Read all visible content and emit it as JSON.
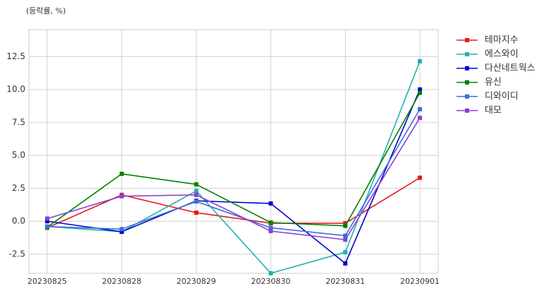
{
  "chart_data": {
    "type": "line",
    "title": "(등락률, %)",
    "categories": [
      "20230825",
      "20230828",
      "20230829",
      "20230830",
      "20230831",
      "20230901"
    ],
    "series": [
      {
        "name": "테마지수",
        "color": "#e31a1c",
        "values": [
          -0.5,
          2.0,
          0.65,
          -0.15,
          -0.15,
          3.3
        ]
      },
      {
        "name": "에스와이",
        "color": "#20b2aa",
        "values": [
          -0.4,
          -0.8,
          2.3,
          -3.95,
          -2.35,
          12.15
        ]
      },
      {
        "name": "다산네트웍스",
        "color": "#0000cd",
        "values": [
          0.0,
          -0.8,
          1.55,
          1.35,
          -3.2,
          10.0
        ]
      },
      {
        "name": "유신",
        "color": "#008000",
        "values": [
          -0.45,
          3.6,
          2.8,
          -0.1,
          -0.35,
          9.75
        ]
      },
      {
        "name": "디와이디",
        "color": "#3a6fd8",
        "values": [
          -0.4,
          -0.6,
          1.5,
          -0.5,
          -1.1,
          8.5
        ]
      },
      {
        "name": "대모",
        "color": "#8a3fd6",
        "values": [
          0.2,
          1.9,
          2.0,
          -0.75,
          -1.4,
          7.85
        ]
      }
    ],
    "ylim": [
      -3.95,
      14.55
    ],
    "yticks": [
      -2.5,
      0.0,
      2.5,
      5.0,
      7.5,
      10.0,
      12.5
    ],
    "grid": true,
    "legend": "outside-right"
  }
}
